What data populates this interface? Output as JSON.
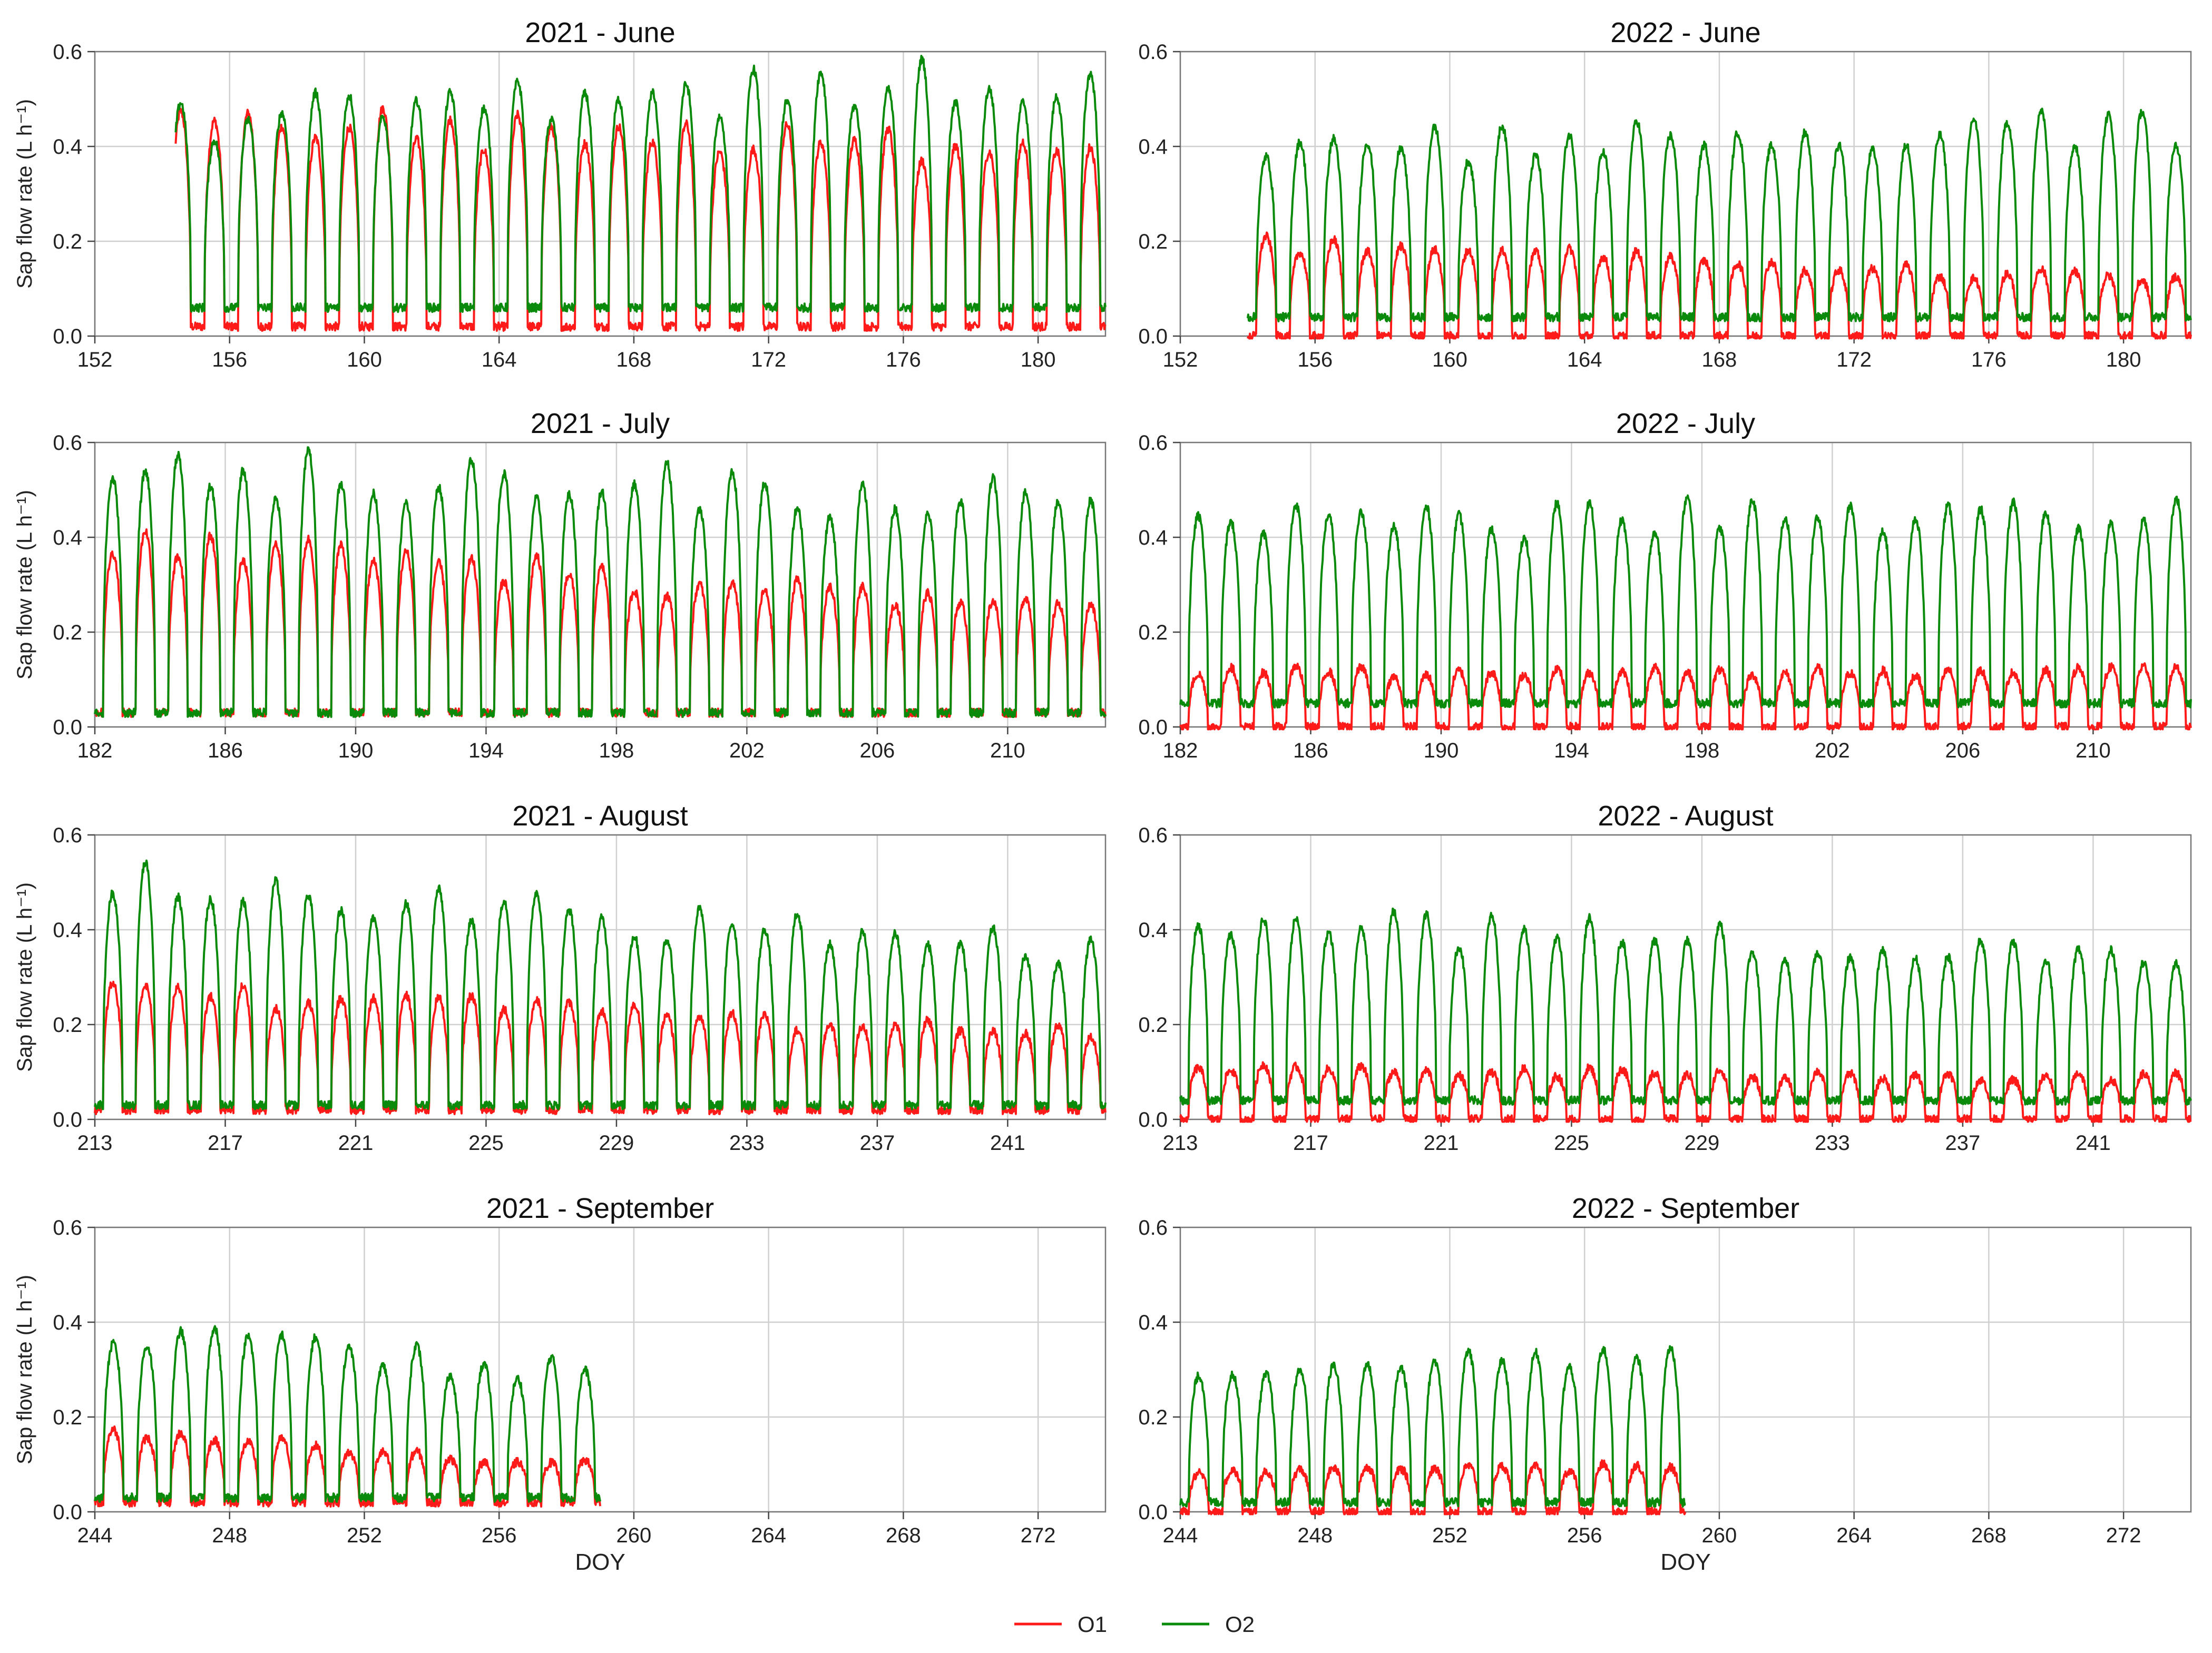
{
  "legend": {
    "placement": "bottom-center",
    "items": [
      {
        "label": "O1",
        "color": "#ff1a1a"
      },
      {
        "label": "O2",
        "color": "#0a8a0a"
      }
    ]
  },
  "y_axis_label": "Sap flow rate (L h⁻¹)",
  "x_axis_label": "DOY",
  "chart_data": [
    {
      "type": "line",
      "title": "2021 - June",
      "xlim": [
        152,
        182
      ],
      "ylim": [
        0,
        0.6
      ],
      "xticks": [
        152,
        156,
        160,
        164,
        168,
        172,
        176,
        180
      ],
      "yticks": [
        0.0,
        0.2,
        0.4,
        0.6
      ],
      "grid": true,
      "series": [
        {
          "name": "O1",
          "start": 154.4,
          "end": 182,
          "peak_start": 0.47,
          "peak_end": 0.39,
          "base": 0.02
        },
        {
          "name": "O2",
          "start": 154.4,
          "end": 182,
          "peak_start": 0.46,
          "peak_end": 0.57,
          "base": 0.06
        }
      ]
    },
    {
      "type": "line",
      "title": "2022 - June",
      "xlim": [
        152,
        182
      ],
      "ylim": [
        0,
        0.6
      ],
      "xticks": [
        152,
        156,
        160,
        164,
        168,
        172,
        176,
        180
      ],
      "yticks": [
        0.0,
        0.2,
        0.4,
        0.6
      ],
      "grid": true,
      "series": [
        {
          "name": "O1",
          "start": 154.0,
          "end": 182,
          "peak_start": 0.2,
          "peak_end": 0.12,
          "base": 0.0
        },
        {
          "name": "O2",
          "start": 154.0,
          "end": 182,
          "peak_start": 0.4,
          "peak_end": 0.45,
          "base": 0.04
        }
      ]
    },
    {
      "type": "line",
      "title": "2021 - July",
      "xlim": [
        182,
        213
      ],
      "ylim": [
        0,
        0.6
      ],
      "xticks": [
        182,
        186,
        190,
        194,
        198,
        202,
        206,
        210
      ],
      "yticks": [
        0.0,
        0.2,
        0.4,
        0.6
      ],
      "grid": true,
      "series": [
        {
          "name": "O1",
          "start": 182,
          "end": 213,
          "peak_start": 0.4,
          "peak_end": 0.25,
          "base": 0.03
        },
        {
          "name": "O2",
          "start": 182,
          "end": 213,
          "peak_start": 0.56,
          "peak_end": 0.48,
          "base": 0.03
        }
      ]
    },
    {
      "type": "line",
      "title": "2022 - July",
      "xlim": [
        182,
        213
      ],
      "ylim": [
        0,
        0.6
      ],
      "xticks": [
        182,
        186,
        190,
        194,
        198,
        202,
        206,
        210
      ],
      "yticks": [
        0.0,
        0.2,
        0.4,
        0.6
      ],
      "grid": true,
      "series": [
        {
          "name": "O1",
          "start": 182,
          "end": 213,
          "peak_start": 0.12,
          "peak_end": 0.12,
          "base": 0.0
        },
        {
          "name": "O2",
          "start": 182,
          "end": 213,
          "peak_start": 0.45,
          "peak_end": 0.45,
          "base": 0.05
        }
      ]
    },
    {
      "type": "line",
      "title": "2021 - August",
      "xlim": [
        213,
        244
      ],
      "ylim": [
        0,
        0.6
      ],
      "xticks": [
        213,
        217,
        221,
        225,
        229,
        233,
        237,
        241
      ],
      "yticks": [
        0.0,
        0.2,
        0.4,
        0.6
      ],
      "grid": true,
      "series": [
        {
          "name": "O1",
          "start": 213,
          "end": 244,
          "peak_start": 0.28,
          "peak_end": 0.18,
          "base": 0.02
        },
        {
          "name": "O2",
          "start": 213,
          "end": 244,
          "peak_start": 0.52,
          "peak_end": 0.36,
          "base": 0.03
        }
      ]
    },
    {
      "type": "line",
      "title": "2022 - August",
      "xlim": [
        213,
        244
      ],
      "ylim": [
        0,
        0.6
      ],
      "xticks": [
        213,
        217,
        221,
        225,
        229,
        233,
        237,
        241
      ],
      "yticks": [
        0.0,
        0.2,
        0.4,
        0.6
      ],
      "grid": true,
      "series": [
        {
          "name": "O1",
          "start": 213,
          "end": 244,
          "peak_start": 0.11,
          "peak_end": 0.09,
          "base": 0.0
        },
        {
          "name": "O2",
          "start": 213,
          "end": 244,
          "peak_start": 0.44,
          "peak_end": 0.34,
          "base": 0.04
        }
      ]
    },
    {
      "type": "line",
      "title": "2021 - September",
      "xlim": [
        244,
        274
      ],
      "ylim": [
        0,
        0.6
      ],
      "xticks": [
        244,
        248,
        252,
        256,
        260,
        264,
        268,
        272
      ],
      "yticks": [
        0.0,
        0.2,
        0.4,
        0.6
      ],
      "grid": true,
      "series": [
        {
          "name": "O1",
          "start": 244,
          "end": 259,
          "peak_start": 0.18,
          "peak_end": 0.1,
          "base": 0.02
        },
        {
          "name": "O2",
          "start": 244,
          "end": 259,
          "peak_start": 0.38,
          "peak_end": 0.3,
          "base": 0.03
        }
      ]
    },
    {
      "type": "line",
      "title": "2022 - September",
      "xlim": [
        244,
        274
      ],
      "ylim": [
        0,
        0.6
      ],
      "xticks": [
        244,
        248,
        252,
        256,
        260,
        264,
        268,
        272
      ],
      "yticks": [
        0.0,
        0.2,
        0.4,
        0.6
      ],
      "grid": true,
      "series": [
        {
          "name": "O1",
          "start": 244,
          "end": 259,
          "peak_start": 0.08,
          "peak_end": 0.1,
          "base": 0.0
        },
        {
          "name": "O2",
          "start": 244,
          "end": 259,
          "peak_start": 0.3,
          "peak_end": 0.33,
          "base": 0.02
        }
      ]
    }
  ]
}
